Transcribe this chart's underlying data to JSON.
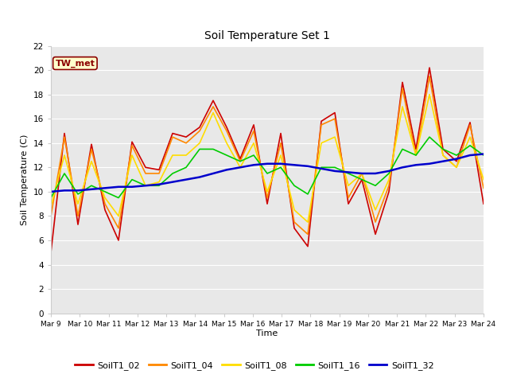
{
  "title": "Soil Temperature Set 1",
  "xlabel": "Time",
  "ylabel": "Soil Temperature (C)",
  "ylim": [
    0,
    22
  ],
  "yticks": [
    0,
    2,
    4,
    6,
    8,
    10,
    12,
    14,
    16,
    18,
    20,
    22
  ],
  "plot_bg_color": "#e8e8e8",
  "fig_bg_color": "#ffffff",
  "annotation_text": "TW_met",
  "annotation_color": "#8b0000",
  "annotation_bg": "#ffffcc",
  "annotation_border": "#8b0000",
  "series_colors": {
    "SoilT1_02": "#cc0000",
    "SoilT1_04": "#ff8800",
    "SoilT1_08": "#ffdd00",
    "SoilT1_16": "#00cc00",
    "SoilT1_32": "#0000cc"
  },
  "x_labels": [
    "Mar 9",
    "Mar 10",
    "Mar 11",
    "Mar 12",
    "Mar 13",
    "Mar 14",
    "Mar 15",
    "Mar 16",
    "Mar 17",
    "Mar 18",
    "Mar 19",
    "Mar 20",
    "Mar 21",
    "Mar 22",
    "Mar 23",
    "Mar 24"
  ],
  "SoilT1_02": [
    5.0,
    14.8,
    7.3,
    13.9,
    8.5,
    6.0,
    14.1,
    12.0,
    11.8,
    14.8,
    14.5,
    15.3,
    17.5,
    15.3,
    12.7,
    15.5,
    9.0,
    14.8,
    7.0,
    5.5,
    15.8,
    16.5,
    9.0,
    11.0,
    6.5,
    10.0,
    19.0,
    13.5,
    20.2,
    13.5,
    12.5,
    15.7,
    9.0
  ],
  "SoilT1_04": [
    8.0,
    14.5,
    8.0,
    13.5,
    9.0,
    7.0,
    13.8,
    11.5,
    11.5,
    14.5,
    14.0,
    15.0,
    17.0,
    15.0,
    12.5,
    15.0,
    9.5,
    14.0,
    7.5,
    6.5,
    15.5,
    16.0,
    9.5,
    11.5,
    7.5,
    10.5,
    18.5,
    13.0,
    19.5,
    13.0,
    12.0,
    15.5,
    10.3
  ],
  "SoilT1_08": [
    8.8,
    13.0,
    9.0,
    12.5,
    9.5,
    8.0,
    13.0,
    10.5,
    10.8,
    13.0,
    13.0,
    14.0,
    16.5,
    14.0,
    12.0,
    14.0,
    10.0,
    13.0,
    8.5,
    7.5,
    14.0,
    14.5,
    10.5,
    11.5,
    8.5,
    11.0,
    17.0,
    13.0,
    18.0,
    13.0,
    12.0,
    14.5,
    11.0
  ],
  "SoilT1_16": [
    9.5,
    11.5,
    9.8,
    10.5,
    10.0,
    9.5,
    11.0,
    10.5,
    10.5,
    11.5,
    12.0,
    13.5,
    13.5,
    13.0,
    12.5,
    13.0,
    11.5,
    12.0,
    10.5,
    9.8,
    12.0,
    12.0,
    11.5,
    11.0,
    10.5,
    11.5,
    13.5,
    13.0,
    14.5,
    13.5,
    13.0,
    13.8,
    13.0
  ],
  "SoilT1_32": [
    10.0,
    10.1,
    10.1,
    10.2,
    10.3,
    10.4,
    10.4,
    10.5,
    10.6,
    10.8,
    11.0,
    11.2,
    11.5,
    11.8,
    12.0,
    12.2,
    12.3,
    12.3,
    12.2,
    12.1,
    11.9,
    11.7,
    11.6,
    11.5,
    11.5,
    11.7,
    12.0,
    12.2,
    12.3,
    12.5,
    12.7,
    13.0,
    13.1
  ]
}
